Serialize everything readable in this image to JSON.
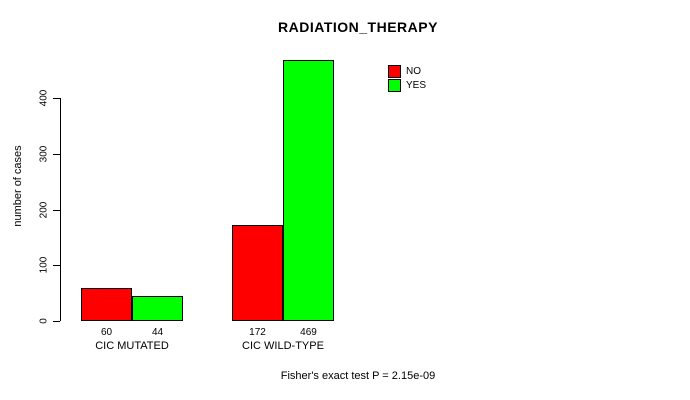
{
  "chart_data": {
    "type": "bar",
    "title": "RADIATION_THERAPY",
    "ylabel": "number of cases",
    "xlabel": "",
    "categories": [
      "CIC MUTATED",
      "CIC WILD-TYPE"
    ],
    "series": [
      {
        "name": "NO",
        "color": "#ff0000",
        "values": [
          60,
          172
        ]
      },
      {
        "name": "YES",
        "color": "#00ff00",
        "values": [
          44,
          469
        ]
      }
    ],
    "yticks": [
      0,
      100,
      200,
      300,
      400
    ],
    "ylim": [
      0,
      469
    ],
    "grid": false,
    "legend_position": "top-right",
    "annotation": "Fisher's exact test P = 2.15e-09"
  }
}
